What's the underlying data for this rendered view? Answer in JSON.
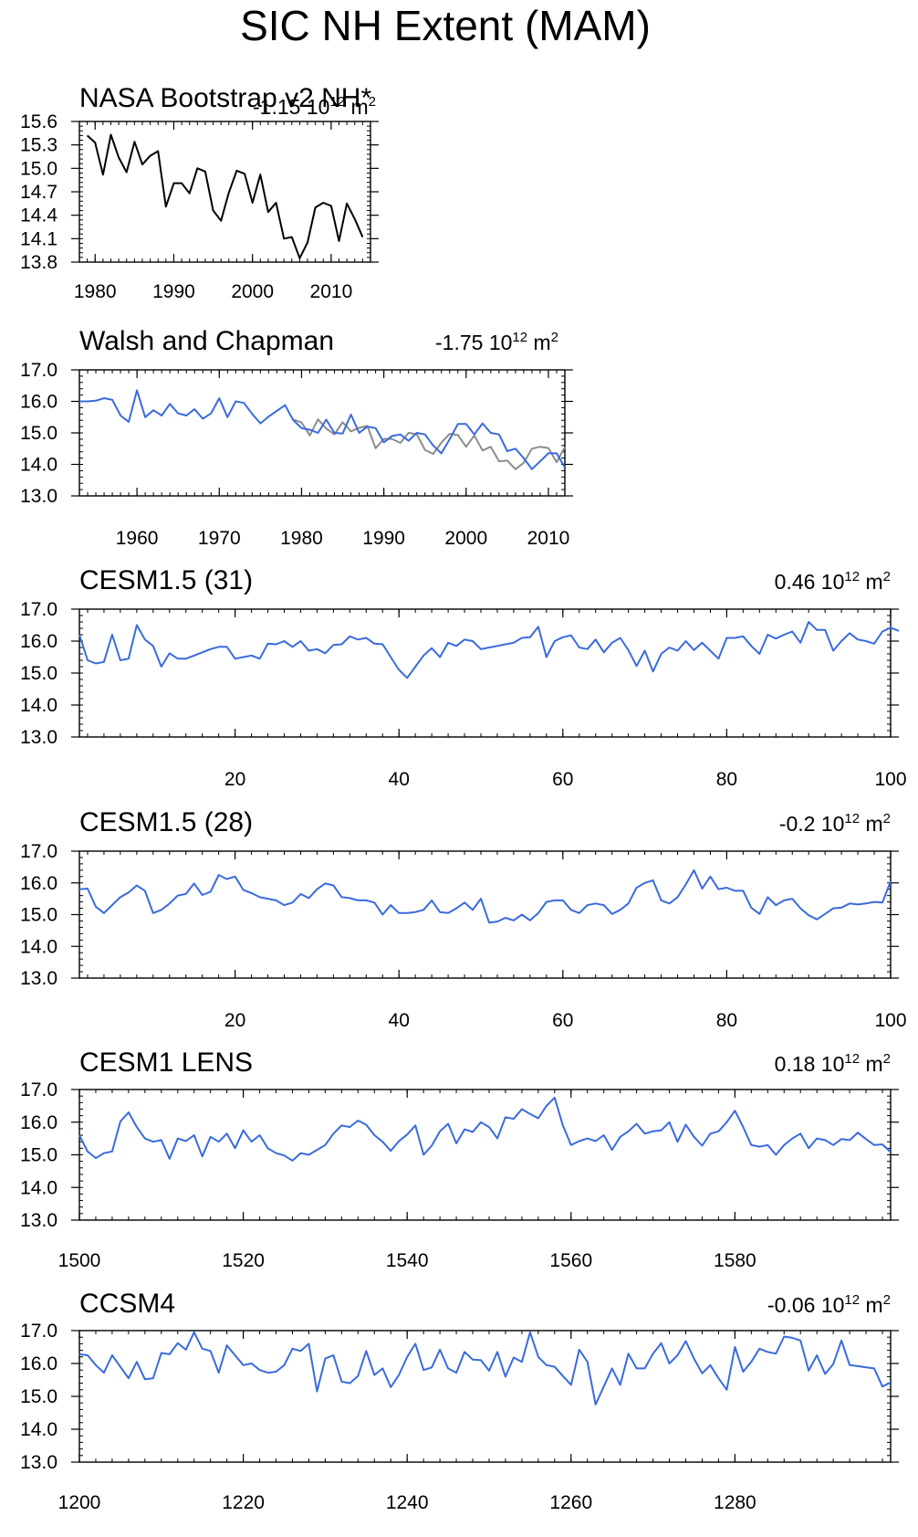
{
  "page": {
    "title": "SIC NH Extent (MAM)"
  },
  "colors": {
    "model": "#3a6bdc",
    "obs": "#000000",
    "obs_alt": "#8c8c8c"
  },
  "chart_data": [
    {
      "type": "line",
      "title": "NASA Bootstrap v2 NH*",
      "trend": {
        "value": "-1.15",
        "unit": "10",
        "unit_exp": "12",
        "unit_suffix": "m",
        "suffix_exp": "2"
      },
      "xlim": [
        1978,
        2015
      ],
      "ylim": [
        13.8,
        15.6
      ],
      "xticks": [
        1980,
        1990,
        2000,
        2010
      ],
      "yticks": [
        13.8,
        14.1,
        14.4,
        14.7,
        15.0,
        15.3,
        15.6
      ],
      "ytick_labels": [
        "13.8",
        "14.1",
        "14.4",
        "14.7",
        "15.0",
        "15.3",
        "15.6"
      ],
      "series": [
        {
          "color_key": "obs",
          "x": [
            1979,
            1980,
            1981,
            1982,
            1983,
            1984,
            1985,
            1986,
            1987,
            1988,
            1989,
            1990,
            1991,
            1992,
            1993,
            1994,
            1995,
            1996,
            1997,
            1998,
            1999,
            2000,
            2001,
            2002,
            2003,
            2004,
            2005,
            2006,
            2007,
            2008,
            2009,
            2010,
            2011,
            2012,
            2013,
            2014
          ],
          "values": [
            15.42,
            15.33,
            14.92,
            15.43,
            15.14,
            14.95,
            15.34,
            15.05,
            15.16,
            15.22,
            14.51,
            14.81,
            14.81,
            14.68,
            15.0,
            14.96,
            14.46,
            14.33,
            14.69,
            14.97,
            14.93,
            14.56,
            14.92,
            14.44,
            14.56,
            14.1,
            14.12,
            13.85,
            14.05,
            14.5,
            14.56,
            14.52,
            14.07,
            14.55,
            14.35,
            14.12
          ]
        }
      ]
    },
    {
      "type": "line",
      "title": "Walsh and Chapman",
      "trend": {
        "value": "-1.75",
        "unit": "10",
        "unit_exp": "12",
        "unit_suffix": "m",
        "suffix_exp": "2"
      },
      "xlim": [
        1953,
        2012
      ],
      "ylim": [
        13.0,
        17.0
      ],
      "xticks": [
        1960,
        1970,
        1980,
        1990,
        2000,
        2010
      ],
      "yticks": [
        13.0,
        14.0,
        15.0,
        16.0,
        17.0
      ],
      "ytick_labels": [
        "13.0",
        "14.0",
        "15.0",
        "16.0",
        "17.0"
      ],
      "series": [
        {
          "color_key": "model",
          "x": [
            1953,
            1954,
            1955,
            1956,
            1957,
            1958,
            1959,
            1960,
            1961,
            1962,
            1963,
            1964,
            1965,
            1966,
            1967,
            1968,
            1969,
            1970,
            1971,
            1972,
            1973,
            1974,
            1975,
            1976,
            1977,
            1978,
            1979,
            1980,
            1981,
            1982,
            1983,
            1984,
            1985,
            1986,
            1987,
            1988,
            1989,
            1990,
            1991,
            1992,
            1993,
            1994,
            1995,
            1996,
            1997,
            1998,
            1999,
            2000,
            2001,
            2002,
            2003,
            2004,
            2005,
            2006,
            2007,
            2008,
            2009,
            2010,
            2011,
            2012
          ],
          "values": [
            16.0,
            16.0,
            16.02,
            16.1,
            16.05,
            15.55,
            15.35,
            16.35,
            15.5,
            15.72,
            15.55,
            15.92,
            15.62,
            15.55,
            15.75,
            15.45,
            15.62,
            16.1,
            15.5,
            16.0,
            15.95,
            15.6,
            15.3,
            15.52,
            15.7,
            15.88,
            15.4,
            15.15,
            15.1,
            15.0,
            15.42,
            15.0,
            14.98,
            15.58,
            15.0,
            15.2,
            15.15,
            14.7,
            14.9,
            14.95,
            14.75,
            15.0,
            14.95,
            14.6,
            14.35,
            14.8,
            15.28,
            15.28,
            14.95,
            15.3,
            15.0,
            14.95,
            14.42,
            14.5,
            14.2,
            13.85,
            14.1,
            14.35,
            14.35,
            13.9
          ]
        },
        {
          "color_key": "obs_alt",
          "x": [
            1979,
            1980,
            1981,
            1982,
            1983,
            1984,
            1985,
            1986,
            1987,
            1988,
            1989,
            1990,
            1991,
            1992,
            1993,
            1994,
            1995,
            1996,
            1997,
            1998,
            1999,
            2000,
            2001,
            2002,
            2003,
            2004,
            2005,
            2006,
            2007,
            2008,
            2009,
            2010,
            2011,
            2012
          ],
          "values": [
            15.42,
            15.33,
            14.92,
            15.43,
            15.14,
            14.95,
            15.34,
            15.05,
            15.16,
            15.22,
            14.51,
            14.81,
            14.81,
            14.68,
            15.0,
            14.96,
            14.46,
            14.33,
            14.69,
            14.97,
            14.93,
            14.56,
            14.92,
            14.44,
            14.56,
            14.1,
            14.12,
            13.85,
            14.05,
            14.5,
            14.56,
            14.52,
            14.07,
            14.55
          ]
        }
      ]
    },
    {
      "type": "line",
      "title": "CESM1.5 (31)",
      "trend": {
        "value": "0.46",
        "unit": "10",
        "unit_exp": "12",
        "unit_suffix": "m",
        "suffix_exp": "2"
      },
      "xlim": [
        1,
        100
      ],
      "ylim": [
        13.0,
        17.0
      ],
      "xticks": [
        20,
        40,
        60,
        80,
        100
      ],
      "yticks": [
        13.0,
        14.0,
        15.0,
        16.0,
        17.0
      ],
      "ytick_labels": [
        "13.0",
        "14.0",
        "15.0",
        "16.0",
        "17.0"
      ],
      "series": [
        {
          "color_key": "model",
          "x_start": 1,
          "values": [
            16.2,
            15.4,
            15.3,
            15.35,
            16.2,
            15.4,
            15.45,
            16.5,
            16.05,
            15.85,
            15.2,
            15.62,
            15.45,
            15.45,
            15.55,
            15.65,
            15.75,
            15.82,
            15.82,
            15.45,
            15.5,
            15.55,
            15.45,
            15.92,
            15.9,
            16.0,
            15.82,
            16.0,
            15.7,
            15.75,
            15.62,
            15.88,
            15.9,
            16.15,
            16.05,
            16.1,
            15.92,
            15.9,
            15.5,
            15.1,
            14.85,
            15.2,
            15.55,
            15.78,
            15.5,
            15.95,
            15.85,
            16.05,
            16.0,
            15.75,
            15.8,
            15.85,
            15.9,
            15.95,
            16.1,
            16.12,
            16.45,
            15.5,
            16.0,
            16.12,
            16.18,
            15.8,
            15.75,
            16.05,
            15.65,
            15.95,
            16.1,
            15.72,
            15.22,
            15.7,
            15.05,
            15.6,
            15.8,
            15.7,
            16.0,
            15.72,
            15.95,
            15.7,
            15.45,
            16.1,
            16.1,
            16.15,
            15.85,
            15.6,
            16.2,
            16.08,
            16.2,
            16.3,
            15.95,
            16.6,
            16.35,
            16.35,
            15.7,
            16.0,
            16.25,
            16.05,
            16.0,
            15.92,
            16.3,
            16.42,
            16.32
          ]
        }
      ]
    },
    {
      "type": "line",
      "title": "CESM1.5 (28)",
      "trend": {
        "value": "-0.2",
        "unit": "10",
        "unit_exp": "12",
        "unit_suffix": "m",
        "suffix_exp": "2"
      },
      "xlim": [
        1,
        100
      ],
      "ylim": [
        13.0,
        17.0
      ],
      "xticks": [
        20,
        40,
        60,
        80,
        100
      ],
      "yticks": [
        13.0,
        14.0,
        15.0,
        16.0,
        17.0
      ],
      "ytick_labels": [
        "13.0",
        "14.0",
        "15.0",
        "16.0",
        "17.0"
      ],
      "series": [
        {
          "color_key": "model",
          "x_start": 1,
          "values": [
            15.8,
            15.82,
            15.25,
            15.05,
            15.3,
            15.55,
            15.7,
            15.92,
            15.75,
            15.05,
            15.15,
            15.35,
            15.6,
            15.65,
            15.98,
            15.62,
            15.72,
            16.25,
            16.12,
            16.2,
            15.78,
            15.68,
            15.55,
            15.5,
            15.45,
            15.3,
            15.38,
            15.65,
            15.52,
            15.8,
            15.98,
            15.92,
            15.55,
            15.52,
            15.45,
            15.45,
            15.38,
            15.0,
            15.3,
            15.05,
            15.05,
            15.08,
            15.15,
            15.45,
            15.08,
            15.05,
            15.2,
            15.38,
            15.15,
            15.5,
            14.75,
            14.78,
            14.9,
            14.82,
            15.0,
            14.82,
            15.05,
            15.4,
            15.45,
            15.45,
            15.15,
            15.05,
            15.3,
            15.35,
            15.3,
            15.02,
            15.15,
            15.35,
            15.85,
            16.0,
            16.08,
            15.45,
            15.35,
            15.55,
            15.95,
            16.4,
            15.82,
            16.2,
            15.8,
            15.85,
            15.75,
            15.75,
            15.22,
            15.02,
            15.55,
            15.3,
            15.45,
            15.5,
            15.2,
            14.98,
            14.85,
            15.02,
            15.2,
            15.22,
            15.35,
            15.32,
            15.35,
            15.4,
            15.38,
            16.05
          ]
        }
      ]
    },
    {
      "type": "line",
      "title": "CESM1 LENS",
      "trend": {
        "value": "0.18",
        "unit": "10",
        "unit_exp": "12",
        "unit_suffix": "m",
        "suffix_exp": "2"
      },
      "xlim": [
        1500,
        1599
      ],
      "ylim": [
        13.0,
        17.0
      ],
      "xticks": [
        1500,
        1520,
        1540,
        1560,
        1580
      ],
      "yticks": [
        13.0,
        14.0,
        15.0,
        16.0,
        17.0
      ],
      "ytick_labels": [
        "13.0",
        "14.0",
        "15.0",
        "16.0",
        "17.0"
      ],
      "series": [
        {
          "color_key": "model",
          "x_start": 1500,
          "values": [
            15.6,
            15.1,
            14.9,
            15.05,
            15.1,
            16.02,
            16.3,
            15.85,
            15.5,
            15.4,
            15.45,
            14.88,
            15.5,
            15.42,
            15.6,
            14.95,
            15.55,
            15.4,
            15.65,
            15.2,
            15.75,
            15.4,
            15.6,
            15.2,
            15.05,
            14.98,
            14.82,
            15.05,
            15.0,
            15.15,
            15.3,
            15.65,
            15.9,
            15.85,
            16.05,
            15.92,
            15.6,
            15.4,
            15.12,
            15.42,
            15.62,
            15.9,
            15.0,
            15.28,
            15.72,
            15.95,
            15.35,
            15.78,
            15.7,
            16.0,
            15.85,
            15.5,
            16.15,
            16.1,
            16.4,
            16.25,
            16.12,
            16.5,
            16.75,
            15.9,
            15.3,
            15.42,
            15.5,
            15.42,
            15.6,
            15.15,
            15.55,
            15.72,
            15.95,
            15.65,
            15.72,
            15.75,
            16.0,
            15.4,
            15.92,
            15.55,
            15.28,
            15.65,
            15.72,
            16.0,
            16.35,
            15.85,
            15.3,
            15.25,
            15.3,
            15.0,
            15.3,
            15.5,
            15.65,
            15.2,
            15.5,
            15.45,
            15.3,
            15.48,
            15.45,
            15.68,
            15.48,
            15.3,
            15.32,
            15.08
          ]
        }
      ]
    },
    {
      "type": "line",
      "title": "CCSM4",
      "trend": {
        "value": "-0.06",
        "unit": "10",
        "unit_exp": "12",
        "unit_suffix": "m",
        "suffix_exp": "2"
      },
      "xlim": [
        1200,
        1299
      ],
      "ylim": [
        13.0,
        17.0
      ],
      "xticks": [
        1200,
        1220,
        1240,
        1260,
        1280
      ],
      "yticks": [
        13.0,
        14.0,
        15.0,
        16.0,
        17.0
      ],
      "ytick_labels": [
        "13.0",
        "14.0",
        "15.0",
        "16.0",
        "17.0"
      ],
      "series": [
        {
          "color_key": "model",
          "x_start": 1200,
          "values": [
            16.28,
            16.25,
            15.95,
            15.72,
            16.25,
            15.9,
            15.55,
            16.05,
            15.52,
            15.55,
            16.32,
            16.28,
            16.62,
            16.42,
            16.95,
            16.45,
            16.38,
            15.72,
            16.55,
            16.25,
            15.95,
            16.0,
            15.8,
            15.72,
            15.75,
            15.95,
            16.45,
            16.38,
            16.6,
            15.15,
            16.15,
            16.25,
            15.45,
            15.4,
            15.62,
            16.38,
            15.65,
            15.85,
            15.28,
            15.65,
            16.2,
            16.6,
            15.8,
            15.88,
            16.42,
            15.85,
            15.72,
            16.35,
            16.12,
            16.1,
            15.78,
            16.35,
            15.6,
            16.18,
            16.05,
            16.95,
            16.2,
            15.95,
            15.9,
            15.62,
            15.35,
            16.42,
            16.05,
            14.75,
            15.3,
            15.85,
            15.35,
            16.3,
            15.85,
            15.85,
            16.3,
            16.62,
            16.0,
            16.25,
            16.68,
            16.15,
            15.7,
            15.95,
            15.55,
            15.2,
            16.5,
            15.75,
            16.05,
            16.45,
            16.35,
            16.3,
            16.82,
            16.78,
            16.7,
            15.78,
            16.25,
            15.68,
            15.98,
            16.7,
            15.95,
            15.92,
            15.88,
            15.85,
            15.3,
            15.42
          ]
        }
      ]
    }
  ]
}
